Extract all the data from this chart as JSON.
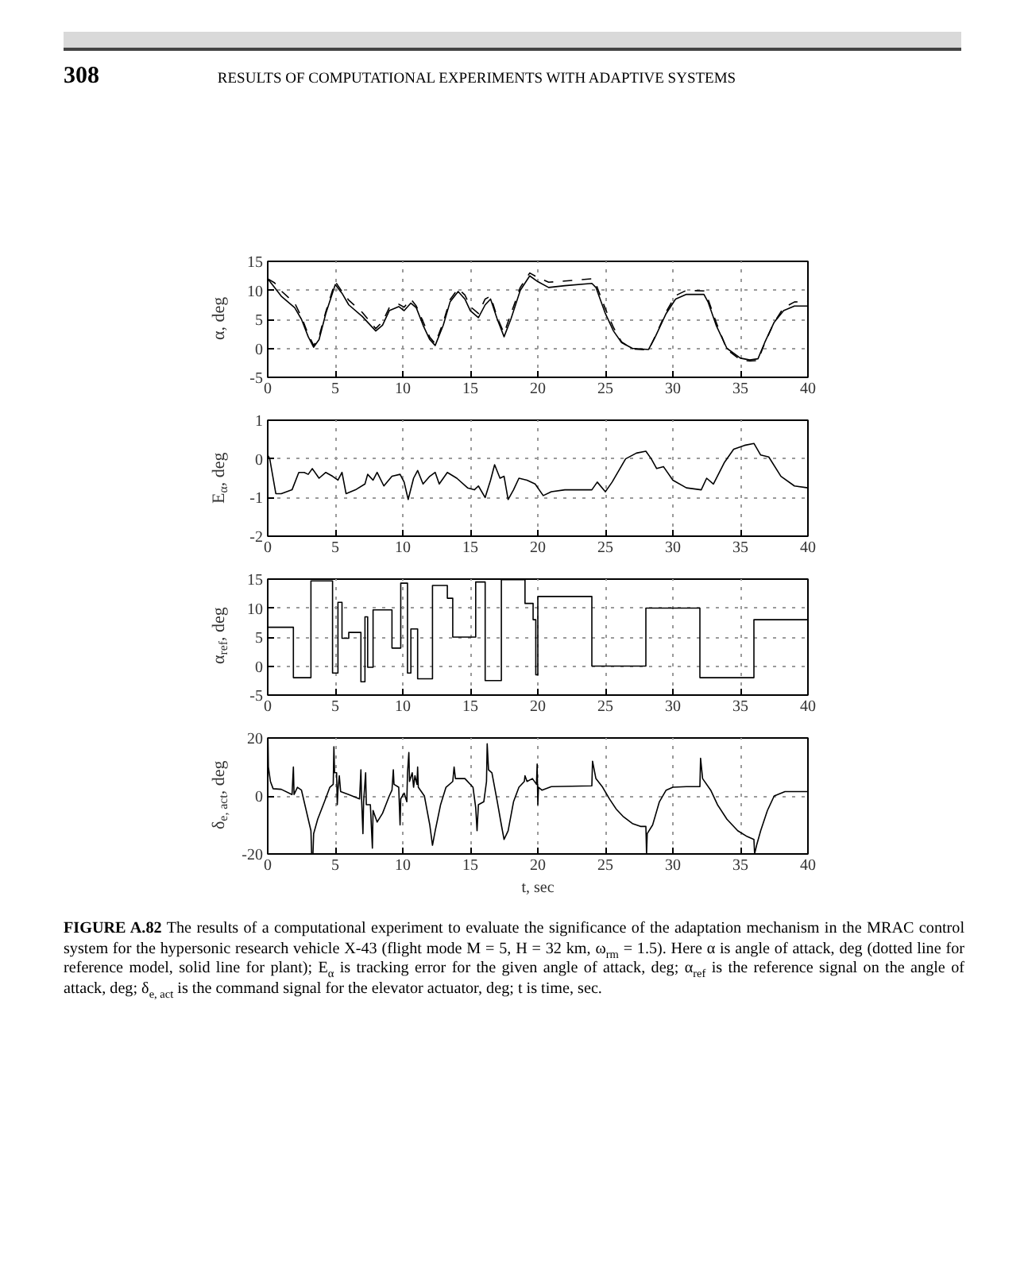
{
  "chart_data": [
    {
      "type": "line",
      "ylabel": "α, deg",
      "annotations": [
        "308",
        "RESULTS OF COMPUTATIONAL EXPERIMENTS WITH ADAPTIVE SYSTEMS"
      ],
      "xlim": [
        0,
        40
      ],
      "xticks": [
        0,
        5,
        10,
        15,
        20,
        25,
        30,
        35,
        40
      ],
      "ylim": [
        -5,
        15
      ],
      "yticks": [
        -5,
        0,
        5,
        10,
        15
      ],
      "grid": true,
      "series": [
        {
          "color": "#000000",
          "line_style": "dashed",
          "x": [
            0,
            0.5,
            1,
            2,
            2.5,
            3,
            3.4,
            3.8,
            4.3,
            5,
            5.5,
            6,
            7,
            8,
            8.5,
            9,
            9.7,
            10.1,
            10.6,
            11,
            11.5,
            12,
            12.4,
            13,
            13.5,
            14.1,
            14.6,
            15,
            15.6,
            16.1,
            16.5,
            17,
            17.5,
            18,
            18.7,
            19.4,
            20,
            20.8,
            22,
            24,
            24.3,
            25,
            25.6,
            26.2,
            27,
            28.2,
            28.7,
            29.5,
            30.2,
            31,
            32.3,
            32.6,
            33.2,
            34,
            35,
            35.7,
            36.3,
            36.8,
            37.5,
            38.2,
            39,
            40
          ],
          "values": [
            12,
            11.3,
            9.9,
            7.8,
            5.4,
            2.4,
            0.5,
            2,
            6.3,
            11.5,
            9.8,
            8.3,
            6.2,
            3.4,
            4.6,
            7,
            7.6,
            7.1,
            8.5,
            7.3,
            4.6,
            1.9,
            0.8,
            4.5,
            8.4,
            10.3,
            9.2,
            7.2,
            6,
            8.5,
            9,
            5.3,
            2.6,
            5.9,
            10.5,
            13,
            12.2,
            11.4,
            11.6,
            12,
            11.1,
            6.8,
            3.6,
            1.1,
            -0.1,
            -0.3,
            2.1,
            6.3,
            9.1,
            10,
            9.9,
            8.5,
            4.5,
            -0.2,
            -2,
            -2.2,
            -2.1,
            0.9,
            4.5,
            7,
            8,
            8.1
          ]
        },
        {
          "color": "#000000",
          "line_style": "solid",
          "x": [
            0,
            0.5,
            1,
            2,
            2.5,
            3,
            3.4,
            3.8,
            4.3,
            5,
            5.5,
            6,
            7,
            8,
            8.5,
            9,
            9.7,
            10.1,
            10.6,
            11,
            11.5,
            12,
            12.4,
            13,
            13.5,
            14.1,
            14.6,
            15,
            15.6,
            16.1,
            16.5,
            17,
            17.5,
            18,
            18.7,
            19.4,
            20,
            20.8,
            22,
            24,
            24.3,
            25,
            25.6,
            26.2,
            27,
            28.2,
            28.7,
            29.5,
            30.2,
            31,
            32.3,
            32.6,
            33.2,
            34,
            35,
            35.7,
            36.3,
            36.8,
            37.5,
            38.2,
            39,
            40
          ],
          "values": [
            12,
            10.5,
            9,
            7,
            5,
            2,
            0.2,
            1.5,
            6,
            11,
            9.5,
            7.5,
            5.5,
            3,
            4,
            6.5,
            7.2,
            6.5,
            7.8,
            7,
            4,
            1.5,
            0.5,
            4,
            8,
            9.8,
            8.5,
            6.5,
            5.3,
            7.5,
            8.5,
            5,
            2,
            5,
            10,
            12.5,
            11.5,
            10.5,
            10.8,
            11.2,
            10.5,
            6,
            3,
            1,
            0,
            -0.2,
            2,
            6,
            8.5,
            9.3,
            9.3,
            8,
            4,
            0,
            -1.7,
            -2,
            -1.8,
            1,
            4.5,
            6.5,
            7.3,
            7.3
          ]
        }
      ]
    },
    {
      "type": "line",
      "ylabel": "E$_{α}$, deg",
      "xlim": [
        0,
        40
      ],
      "xticks": [
        0,
        5,
        10,
        15,
        20,
        25,
        30,
        35,
        40
      ],
      "ylim": [
        -2,
        1
      ],
      "yticks": [
        -2,
        -1,
        0,
        1
      ],
      "grid": true,
      "series": [
        {
          "color": "#000000",
          "x": [
            0,
            0.15,
            0.6,
            1,
            1.8,
            2.3,
            2.7,
            3.0,
            3.3,
            3.8,
            4.3,
            4.8,
            5.2,
            5.5,
            5.8,
            6.5,
            7.2,
            7.4,
            7.8,
            8.1,
            8.6,
            9.2,
            9.8,
            10.1,
            10.4,
            10.8,
            11.1,
            11.5,
            12,
            12.4,
            12.7,
            13.3,
            14,
            14.8,
            15.3,
            15.6,
            16.1,
            16.5,
            16.8,
            17.2,
            17.5,
            17.8,
            18.2,
            18.6,
            19.2,
            19.8,
            20.4,
            21,
            22,
            24,
            24.4,
            25,
            25.5,
            26.5,
            27.3,
            28,
            28.4,
            28.8,
            29.3,
            30,
            31,
            32.1,
            32.5,
            33,
            33.8,
            34.5,
            35.3,
            36,
            36.5,
            37.1,
            38,
            39,
            40
          ],
          "values": [
            0.1,
            0,
            -0.9,
            -0.9,
            -0.8,
            -0.35,
            -0.35,
            -0.4,
            -0.25,
            -0.5,
            -0.35,
            -0.45,
            -0.55,
            -0.35,
            -0.9,
            -0.8,
            -0.65,
            -0.4,
            -0.55,
            -0.35,
            -0.7,
            -0.45,
            -0.4,
            -0.6,
            -1.05,
            -0.5,
            -0.3,
            -0.65,
            -0.45,
            -0.35,
            -0.65,
            -0.35,
            -0.5,
            -0.75,
            -0.8,
            -0.7,
            -1.0,
            -0.55,
            -0.15,
            -0.5,
            -0.45,
            -1.05,
            -0.8,
            -0.5,
            -0.55,
            -0.65,
            -0.95,
            -0.85,
            -0.8,
            -0.8,
            -0.6,
            -0.85,
            -0.6,
            0,
            0.15,
            0.2,
            0,
            -0.25,
            -0.2,
            -0.55,
            -0.75,
            -0.8,
            -0.5,
            -0.65,
            -0.1,
            0.25,
            0.35,
            0.4,
            0.1,
            0.05,
            -0.45,
            -0.7,
            -0.75
          ]
        }
      ]
    },
    {
      "type": "step",
      "ylabel": "α$_{ref}$, deg",
      "xlim": [
        0,
        40
      ],
      "xticks": [
        0,
        5,
        10,
        15,
        20,
        25,
        30,
        35,
        40
      ],
      "ylim": [
        -5,
        15
      ],
      "yticks": [
        -5,
        0,
        5,
        10,
        15
      ],
      "grid": true,
      "series": [
        {
          "color": "#000000",
          "x": [
            0,
            1.9,
            3.2,
            4.8,
            5.2,
            5.5,
            6.0,
            6.9,
            7.2,
            7.4,
            7.8,
            9.2,
            9.85,
            10.35,
            10.6,
            11.1,
            12.2,
            13.3,
            13.7,
            15.4,
            16.1,
            17.3,
            19.05,
            19.65,
            19.85,
            20.0,
            24,
            28,
            32,
            36,
            40
          ],
          "values": [
            6.7,
            -2,
            14.7,
            -1.2,
            11,
            4.8,
            5.8,
            -2.7,
            8.5,
            -0.2,
            9.7,
            3.1,
            14.3,
            -1.2,
            6.4,
            -2.2,
            13.9,
            11.7,
            5.0,
            14.5,
            -2.5,
            14.9,
            10.8,
            8,
            -1.5,
            12,
            0,
            10,
            -2,
            8,
            8
          ]
        }
      ]
    },
    {
      "type": "line",
      "ylabel": "δ$_{e, act}$, deg",
      "xlabel": "t, sec",
      "annotations": [
        "FIGURE A.82 The results of a computational experiment to evaluate the significance of the adaptation mechanism in the MRAC control system for the hypersonic research vehicle X-43 (flight mode M = 5, H = 32 km, ω$_{rm}$ = 1.5). Here α is angle of attack, deg (dotted line for reference model, solid line for plant); E$_{α}$ is tracking error for the given angle of attack, deg; α$_{ref}$ is the reference signal on the angle of attack, deg; δ$_{e, act}$ is the command signal for the elevator actuator, deg; t is time, sec."
      ],
      "xlim": [
        0,
        40
      ],
      "xticks": [
        0,
        5,
        10,
        15,
        20,
        25,
        30,
        35,
        40
      ],
      "ylim": [
        -20,
        20
      ],
      "yticks": [
        -20,
        0,
        20
      ],
      "grid": true,
      "series": [
        {
          "color": "#000000",
          "x": [
            0,
            0.02,
            0.05,
            0.2,
            0.4,
            1.0,
            1.8,
            1.9,
            1.95,
            2.2,
            2.5,
            3.0,
            3.2,
            3.25,
            3.35,
            3.4,
            3.7,
            4.2,
            4.6,
            4.85,
            4.9,
            4.95,
            5.1,
            5.15,
            5.2,
            5.3,
            5.4,
            6.0,
            6.8,
            6.9,
            6.95,
            7.05,
            7.1,
            7.25,
            7.3,
            7.6,
            7.75,
            7.8,
            8.1,
            8.5,
            9.0,
            9.2,
            9.3,
            9.35,
            9.7,
            9.8,
            9.85,
            10.1,
            10.3,
            10.35,
            10.45,
            10.5,
            10.7,
            10.8,
            10.9,
            11.05,
            11.1,
            11.15,
            11.6,
            12.0,
            12.2,
            12.4,
            12.8,
            13.2,
            13.7,
            13.8,
            13.9,
            14.6,
            15.2,
            15.4,
            15.5,
            15.6,
            16.0,
            16.2,
            16.25,
            16.35,
            16.6,
            17.0,
            17.3,
            17.5,
            17.8,
            18.2,
            18.6,
            19.0,
            19.05,
            19.2,
            19.6,
            19.9,
            19.95,
            20.0,
            20.05,
            20.3,
            21,
            24,
            24.05,
            24.3,
            24.8,
            25.3,
            25.8,
            26.3,
            27,
            27.6,
            28,
            28.05,
            28.1,
            28.5,
            29,
            29.5,
            30,
            31,
            32,
            32.05,
            32.2,
            32.8,
            33.3,
            34,
            34.8,
            35.5,
            36,
            36.05,
            36.2,
            36.5,
            37,
            37.5,
            38.3,
            40
          ],
          "values": [
            -20,
            20,
            10,
            5,
            2.5,
            2.3,
            0.5,
            10,
            0.5,
            3,
            2,
            -8,
            -12,
            -20,
            -20,
            -13,
            -8,
            -2,
            3,
            4,
            17,
            8,
            8,
            -3,
            2,
            7,
            1.5,
            0.5,
            -1,
            9,
            -1,
            -13,
            -2,
            8,
            -3,
            -3,
            -18,
            -5,
            -9,
            -6,
            0,
            2,
            9,
            4,
            3,
            -10,
            -1,
            1,
            -2,
            8,
            15,
            5,
            8,
            3,
            7,
            4,
            10,
            3,
            0,
            -10,
            -17,
            -12,
            -3,
            3,
            5,
            10,
            6,
            6,
            3,
            -4,
            -12,
            -3,
            -2,
            5,
            18,
            9,
            8,
            -2,
            -10,
            -15,
            -12,
            -2,
            3,
            5,
            7,
            5,
            6,
            4,
            11,
            -3,
            3,
            2,
            3.2,
            3.5,
            12,
            6,
            3,
            -1,
            -4.5,
            -7,
            -9.5,
            -10.5,
            -10.5,
            -20,
            -13,
            -10,
            -2,
            2,
            3,
            3.2,
            3.2,
            13,
            6,
            2,
            -3,
            -8,
            -12,
            -14,
            -15,
            -20,
            -17,
            -12,
            -5,
            0,
            1.5,
            1.5
          ]
        }
      ]
    }
  ]
}
